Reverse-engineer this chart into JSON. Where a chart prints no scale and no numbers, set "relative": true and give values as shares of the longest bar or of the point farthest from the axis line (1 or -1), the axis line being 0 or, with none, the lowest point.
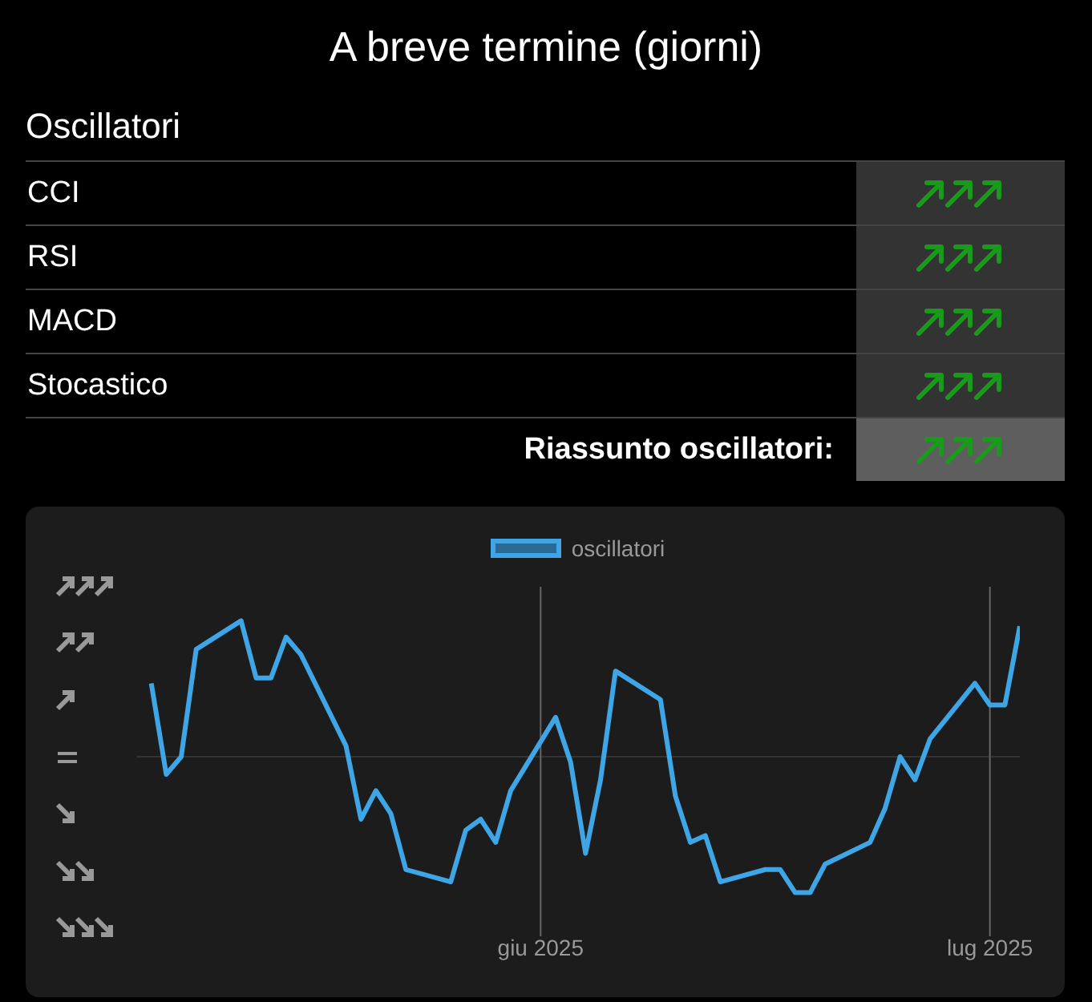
{
  "chart_data": {
    "type": "line",
    "title": "A breve termine (giorni)",
    "annotations": [
      "Oscillatori",
      "CCI",
      "RSI",
      "MACD",
      "Stocastico",
      "Riassunto oscillatori:"
    ],
    "x": [
      "2025-05-06",
      "2025-05-07",
      "2025-05-08",
      "2025-05-09",
      "2025-05-12",
      "2025-05-13",
      "2025-05-14",
      "2025-05-15",
      "2025-05-16",
      "2025-05-19",
      "2025-05-20",
      "2025-05-21",
      "2025-05-22",
      "2025-05-23",
      "2025-05-26",
      "2025-05-27",
      "2025-05-28",
      "2025-05-29",
      "2025-05-30",
      "2025-06-02",
      "2025-06-03",
      "2025-06-04",
      "2025-06-05",
      "2025-06-06",
      "2025-06-09",
      "2025-06-10",
      "2025-06-11",
      "2025-06-12",
      "2025-06-13",
      "2025-06-16",
      "2025-06-17",
      "2025-06-18",
      "2025-06-19",
      "2025-06-20",
      "2025-06-23",
      "2025-06-24",
      "2025-06-25",
      "2025-06-26",
      "2025-06-27",
      "2025-06-30",
      "2025-07-01",
      "2025-07-02",
      "2025-07-03"
    ],
    "series": [
      {
        "name": "oscillatori",
        "color": "#3ea6e6",
        "values": [
          0.54,
          -0.13,
          0,
          0.79,
          1,
          0.58,
          0.58,
          0.88,
          0.75,
          0.08,
          -0.46,
          -0.25,
          -0.42,
          -0.83,
          -0.92,
          -0.54,
          -0.46,
          -0.63,
          -0.25,
          0.29,
          -0.04,
          -0.71,
          -0.17,
          0.63,
          0.42,
          -0.29,
          -0.63,
          -0.58,
          -0.92,
          -0.83,
          -0.83,
          -1,
          -1,
          -0.79,
          -0.63,
          -0.38,
          0,
          -0.17,
          0.13,
          0.54,
          0.38,
          0.38,
          0.96
        ]
      }
    ],
    "relative": true,
    "xlim": [
      "2025-05-05",
      "2025-07-03"
    ],
    "xticks": [
      {
        "value": "2025-06-01",
        "label": "giu 2025"
      },
      {
        "value": "2025-07-01",
        "label": "lug 2025"
      }
    ],
    "grid": "x",
    "legend": "top",
    "marker": "none",
    "line_style": "solid"
  }
}
